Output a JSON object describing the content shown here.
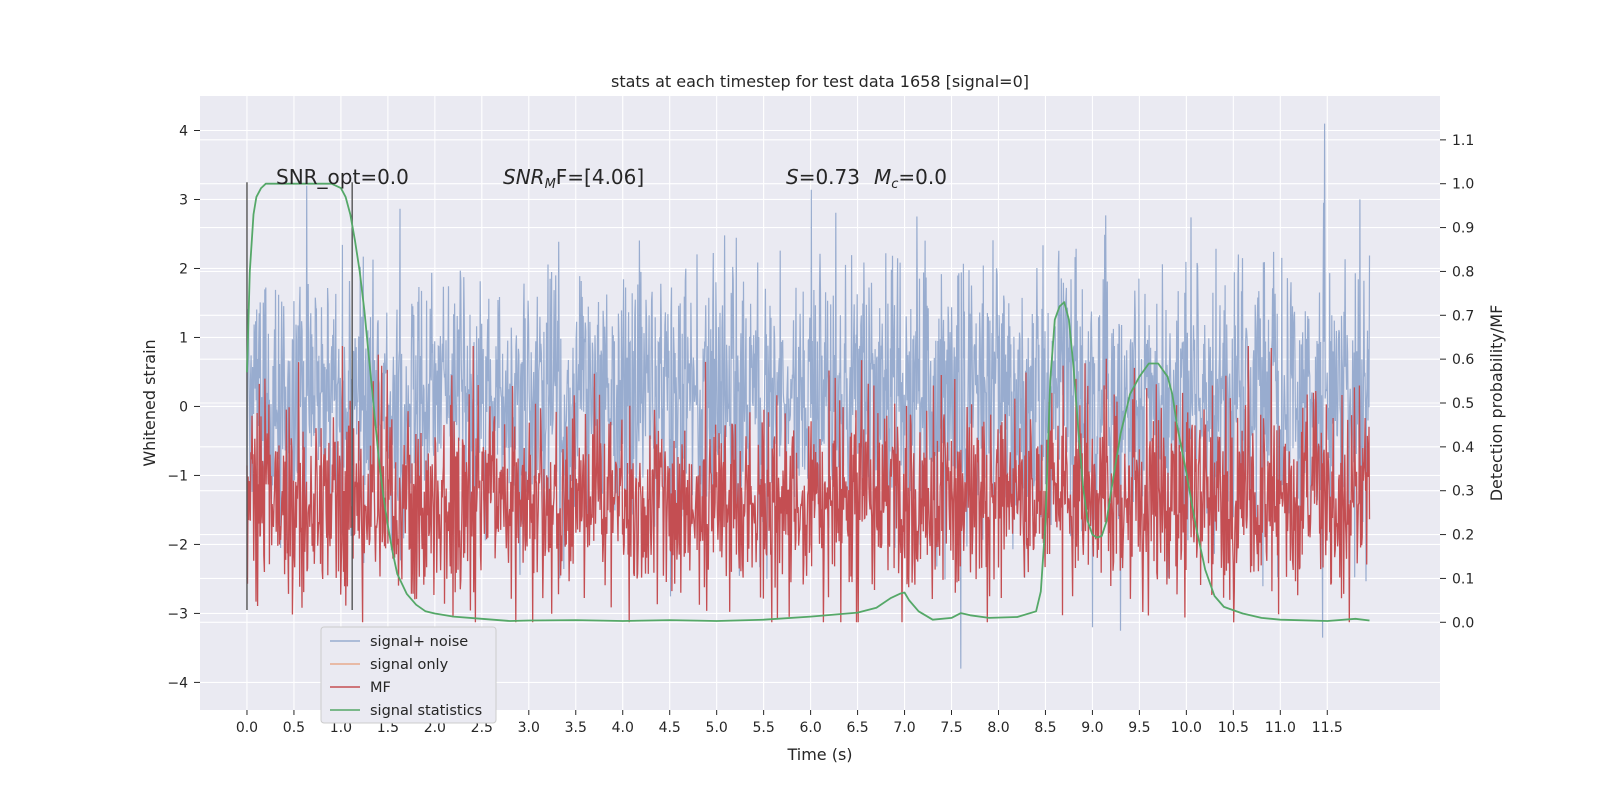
{
  "chart_data": {
    "type": "line",
    "title": "stats at each timestep for test data 1658 [signal=0]",
    "xlabel": "Time (s)",
    "ylabel_left": "Whitened strain",
    "ylabel_right": "Detection probability/MF",
    "xlim": [
      -0.5,
      12.7
    ],
    "ylim_left": [
      -4.4,
      4.5
    ],
    "ylim_right": [
      -0.2,
      1.2
    ],
    "x_ticks": [
      "0.0",
      "0.5",
      "1.0",
      "1.5",
      "2.0",
      "2.5",
      "3.0",
      "3.5",
      "4.0",
      "4.5",
      "5.0",
      "5.5",
      "6.0",
      "6.5",
      "7.0",
      "7.5",
      "8.0",
      "8.5",
      "9.0",
      "9.5",
      "10.0",
      "10.5",
      "11.0",
      "11.5"
    ],
    "y_left_ticks": [
      "4",
      "3",
      "2",
      "1",
      "0",
      "−1",
      "−2",
      "−3",
      "−4"
    ],
    "y_right_ticks": [
      "1.1",
      "1.0",
      "0.9",
      "0.8",
      "0.7",
      "0.6",
      "0.5",
      "0.4",
      "0.3",
      "0.2",
      "0.1",
      "0.0"
    ],
    "grid": true,
    "legend_position": "lower-left",
    "vertical_lines_x": [
      0.0,
      1.12
    ],
    "annotations": {
      "snr_opt": "SNR_opt=0.0",
      "snr_mf_italic": "SNR",
      "snr_mf_sub": "M",
      "snr_mf_rest": "F=[4.06]",
      "s_italic": "S",
      "s_rest": "=0.73",
      "mc_italic": "M",
      "mc_sub": "c",
      "mc_rest": "=0.0"
    },
    "series": [
      {
        "name": "signal+ noise",
        "color": "#98accf",
        "description": "whitened noise trace, 0–11.95 s, spikes mostly within ±3, extremes 4.1 at 11.47 s and −3.8 at 7.6 s"
      },
      {
        "name": "signal only",
        "color": "#e8a98c"
      },
      {
        "name": "MF",
        "color": "#c44e52",
        "description": "matched-filter output, fluctuating between 0.0 and ~0.6 on the right axis"
      },
      {
        "name": "signal statistics",
        "color": "#55a868",
        "x": [
          0.0,
          0.03,
          0.07,
          0.1,
          0.15,
          0.2,
          0.3,
          0.5,
          0.8,
          0.9,
          1.0,
          1.05,
          1.1,
          1.15,
          1.2,
          1.25,
          1.3,
          1.35,
          1.4,
          1.45,
          1.5,
          1.55,
          1.6,
          1.7,
          1.8,
          1.9,
          2.0,
          2.2,
          2.5,
          2.8,
          3.0,
          3.5,
          4.0,
          4.5,
          5.0,
          5.5,
          6.0,
          6.5,
          6.7,
          6.85,
          6.95,
          7.0,
          7.05,
          7.15,
          7.3,
          7.5,
          7.6,
          7.7,
          7.9,
          8.2,
          8.4,
          8.45,
          8.5,
          8.55,
          8.6,
          8.65,
          8.7,
          8.75,
          8.8,
          8.85,
          8.9,
          8.95,
          9.0,
          9.05,
          9.1,
          9.15,
          9.2,
          9.3,
          9.4,
          9.5,
          9.6,
          9.7,
          9.8,
          9.85,
          9.9,
          10.0,
          10.1,
          10.2,
          10.3,
          10.4,
          10.6,
          10.8,
          11.0,
          11.5,
          11.8,
          11.95
        ],
        "values": [
          0.57,
          0.8,
          0.93,
          0.97,
          0.99,
          1.0,
          1.0,
          1.0,
          1.0,
          1.0,
          0.99,
          0.97,
          0.93,
          0.87,
          0.8,
          0.71,
          0.6,
          0.49,
          0.38,
          0.29,
          0.22,
          0.16,
          0.11,
          0.065,
          0.04,
          0.025,
          0.02,
          0.013,
          0.008,
          0.003,
          0.004,
          0.005,
          0.003,
          0.005,
          0.003,
          0.006,
          0.013,
          0.022,
          0.033,
          0.055,
          0.065,
          0.068,
          0.05,
          0.025,
          0.006,
          0.01,
          0.021,
          0.016,
          0.01,
          0.012,
          0.025,
          0.07,
          0.23,
          0.55,
          0.69,
          0.72,
          0.73,
          0.69,
          0.58,
          0.44,
          0.31,
          0.23,
          0.2,
          0.193,
          0.197,
          0.23,
          0.3,
          0.43,
          0.52,
          0.56,
          0.59,
          0.59,
          0.56,
          0.52,
          0.45,
          0.34,
          0.22,
          0.12,
          0.06,
          0.035,
          0.02,
          0.01,
          0.006,
          0.003,
          0.008,
          0.004
        ]
      }
    ]
  }
}
